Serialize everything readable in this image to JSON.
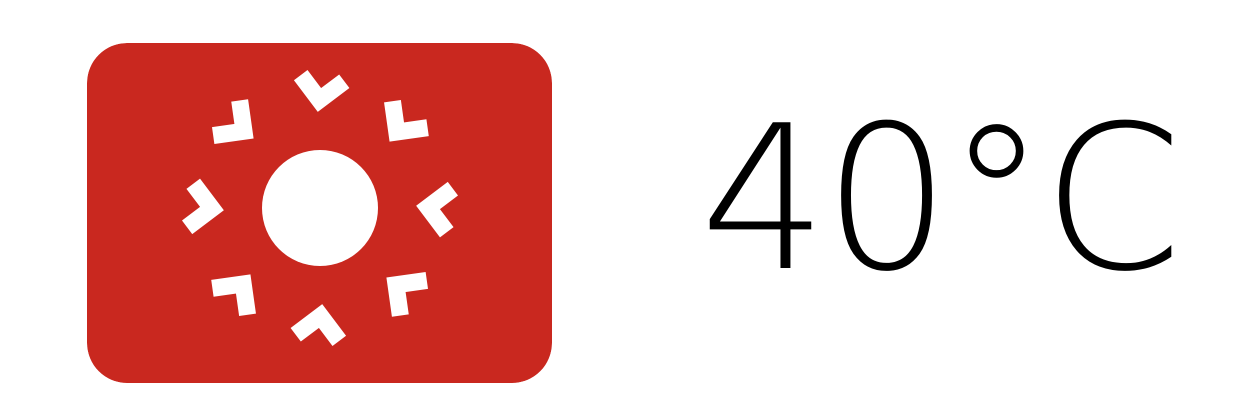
{
  "icon": {
    "name": "heat-sun-icon",
    "background_color": "#C9281F",
    "foreground_color": "#FFFFFF"
  },
  "temperature": {
    "value": "40°C",
    "color": "#000000"
  }
}
